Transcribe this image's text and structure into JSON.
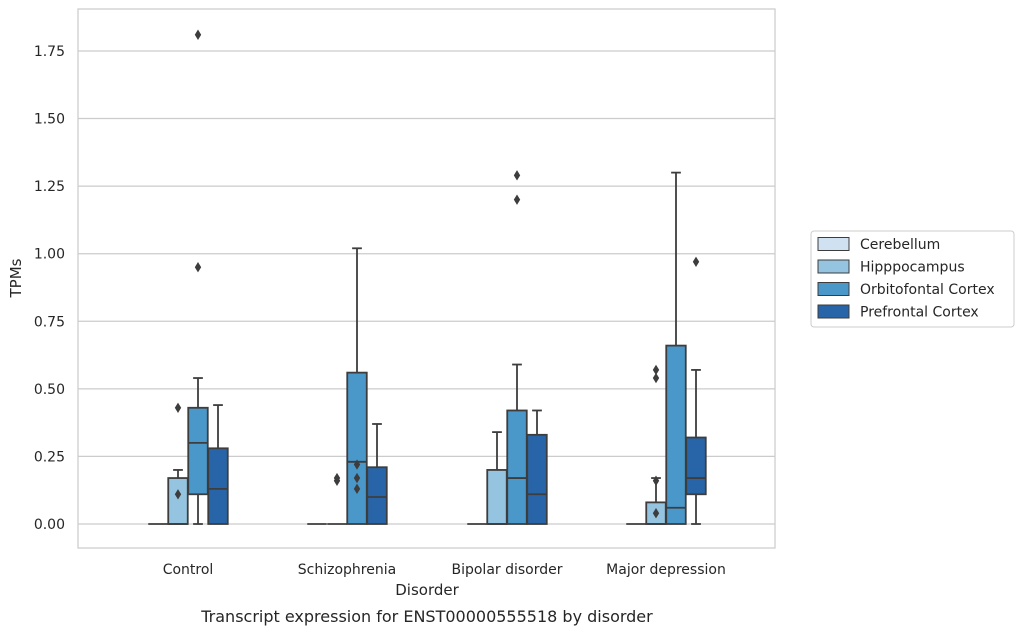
{
  "chart_data": {
    "type": "box",
    "caption": "Transcript expression for ENST00000555518 by disorder",
    "xlabel": "Disorder",
    "ylabel": "TPMs",
    "ylim": [
      -0.09,
      1.9
    ],
    "yticks": [
      0.0,
      0.25,
      0.5,
      0.75,
      1.0,
      1.25,
      1.5,
      1.75
    ],
    "ytick_labels": [
      "0.00",
      "0.25",
      "0.50",
      "0.75",
      "1.00",
      "1.25",
      "1.50",
      "1.75"
    ],
    "grid": "horizontal",
    "legend_position": "right",
    "categories": [
      "Control",
      "Schizophrenia",
      "Bipolar disorder",
      "Major depression"
    ],
    "series": [
      {
        "name": "Cerebellum",
        "color": "#d0e1f2",
        "boxes": [
          {
            "whislo": 0,
            "q1": 0,
            "med": 0,
            "q3": 0,
            "whishi": 0,
            "fliers": []
          },
          {
            "whislo": 0,
            "q1": 0,
            "med": 0,
            "q3": 0,
            "whishi": 0,
            "fliers": []
          },
          {
            "whislo": 0,
            "q1": 0,
            "med": 0,
            "q3": 0,
            "whishi": 0,
            "fliers": []
          },
          {
            "whislo": 0,
            "q1": 0,
            "med": 0,
            "q3": 0,
            "whishi": 0,
            "fliers": []
          }
        ]
      },
      {
        "name": "Hipppocampus",
        "color": "#94c4df",
        "boxes": [
          {
            "whislo": 0,
            "q1": 0,
            "med": 0,
            "q3": 0.17,
            "whishi": 0.2,
            "fliers": [
              0.11,
              0.43
            ]
          },
          {
            "whislo": 0,
            "q1": 0,
            "med": 0,
            "q3": 0,
            "whishi": 0,
            "fliers": [
              0.16,
              0.17
            ]
          },
          {
            "whislo": 0,
            "q1": 0,
            "med": 0,
            "q3": 0.2,
            "whishi": 0.34,
            "fliers": []
          },
          {
            "whislo": 0,
            "q1": 0,
            "med": 0,
            "q3": 0.08,
            "whishi": 0.17,
            "fliers": [
              0.04,
              0.16,
              0.54,
              0.57
            ]
          }
        ]
      },
      {
        "name": "Orbitofontal Cortex",
        "color": "#4a98c9",
        "boxes": [
          {
            "whislo": 0,
            "q1": 0.11,
            "med": 0.3,
            "q3": 0.43,
            "whishi": 0.54,
            "fliers": [
              0.95,
              1.81
            ]
          },
          {
            "whislo": 0,
            "q1": 0,
            "med": 0.23,
            "q3": 0.56,
            "whishi": 1.02,
            "fliers": [
              0.13,
              0.17,
              0.22
            ]
          },
          {
            "whislo": 0,
            "q1": 0,
            "med": 0.17,
            "q3": 0.42,
            "whishi": 0.59,
            "fliers": [
              1.2,
              1.29
            ]
          },
          {
            "whislo": 0,
            "q1": 0,
            "med": 0.06,
            "q3": 0.66,
            "whishi": 1.3,
            "fliers": []
          }
        ]
      },
      {
        "name": "Prefrontal Cortex",
        "color": "#2765a8",
        "boxes": [
          {
            "whislo": 0,
            "q1": 0,
            "med": 0.13,
            "q3": 0.28,
            "whishi": 0.44,
            "fliers": []
          },
          {
            "whislo": 0,
            "q1": 0,
            "med": 0.1,
            "q3": 0.21,
            "whishi": 0.37,
            "fliers": []
          },
          {
            "whislo": 0,
            "q1": 0,
            "med": 0.11,
            "q3": 0.33,
            "whishi": 0.42,
            "fliers": []
          },
          {
            "whislo": 0,
            "q1": 0.11,
            "med": 0.17,
            "q3": 0.32,
            "whishi": 0.57,
            "fliers": [
              0.97
            ]
          }
        ]
      }
    ]
  }
}
